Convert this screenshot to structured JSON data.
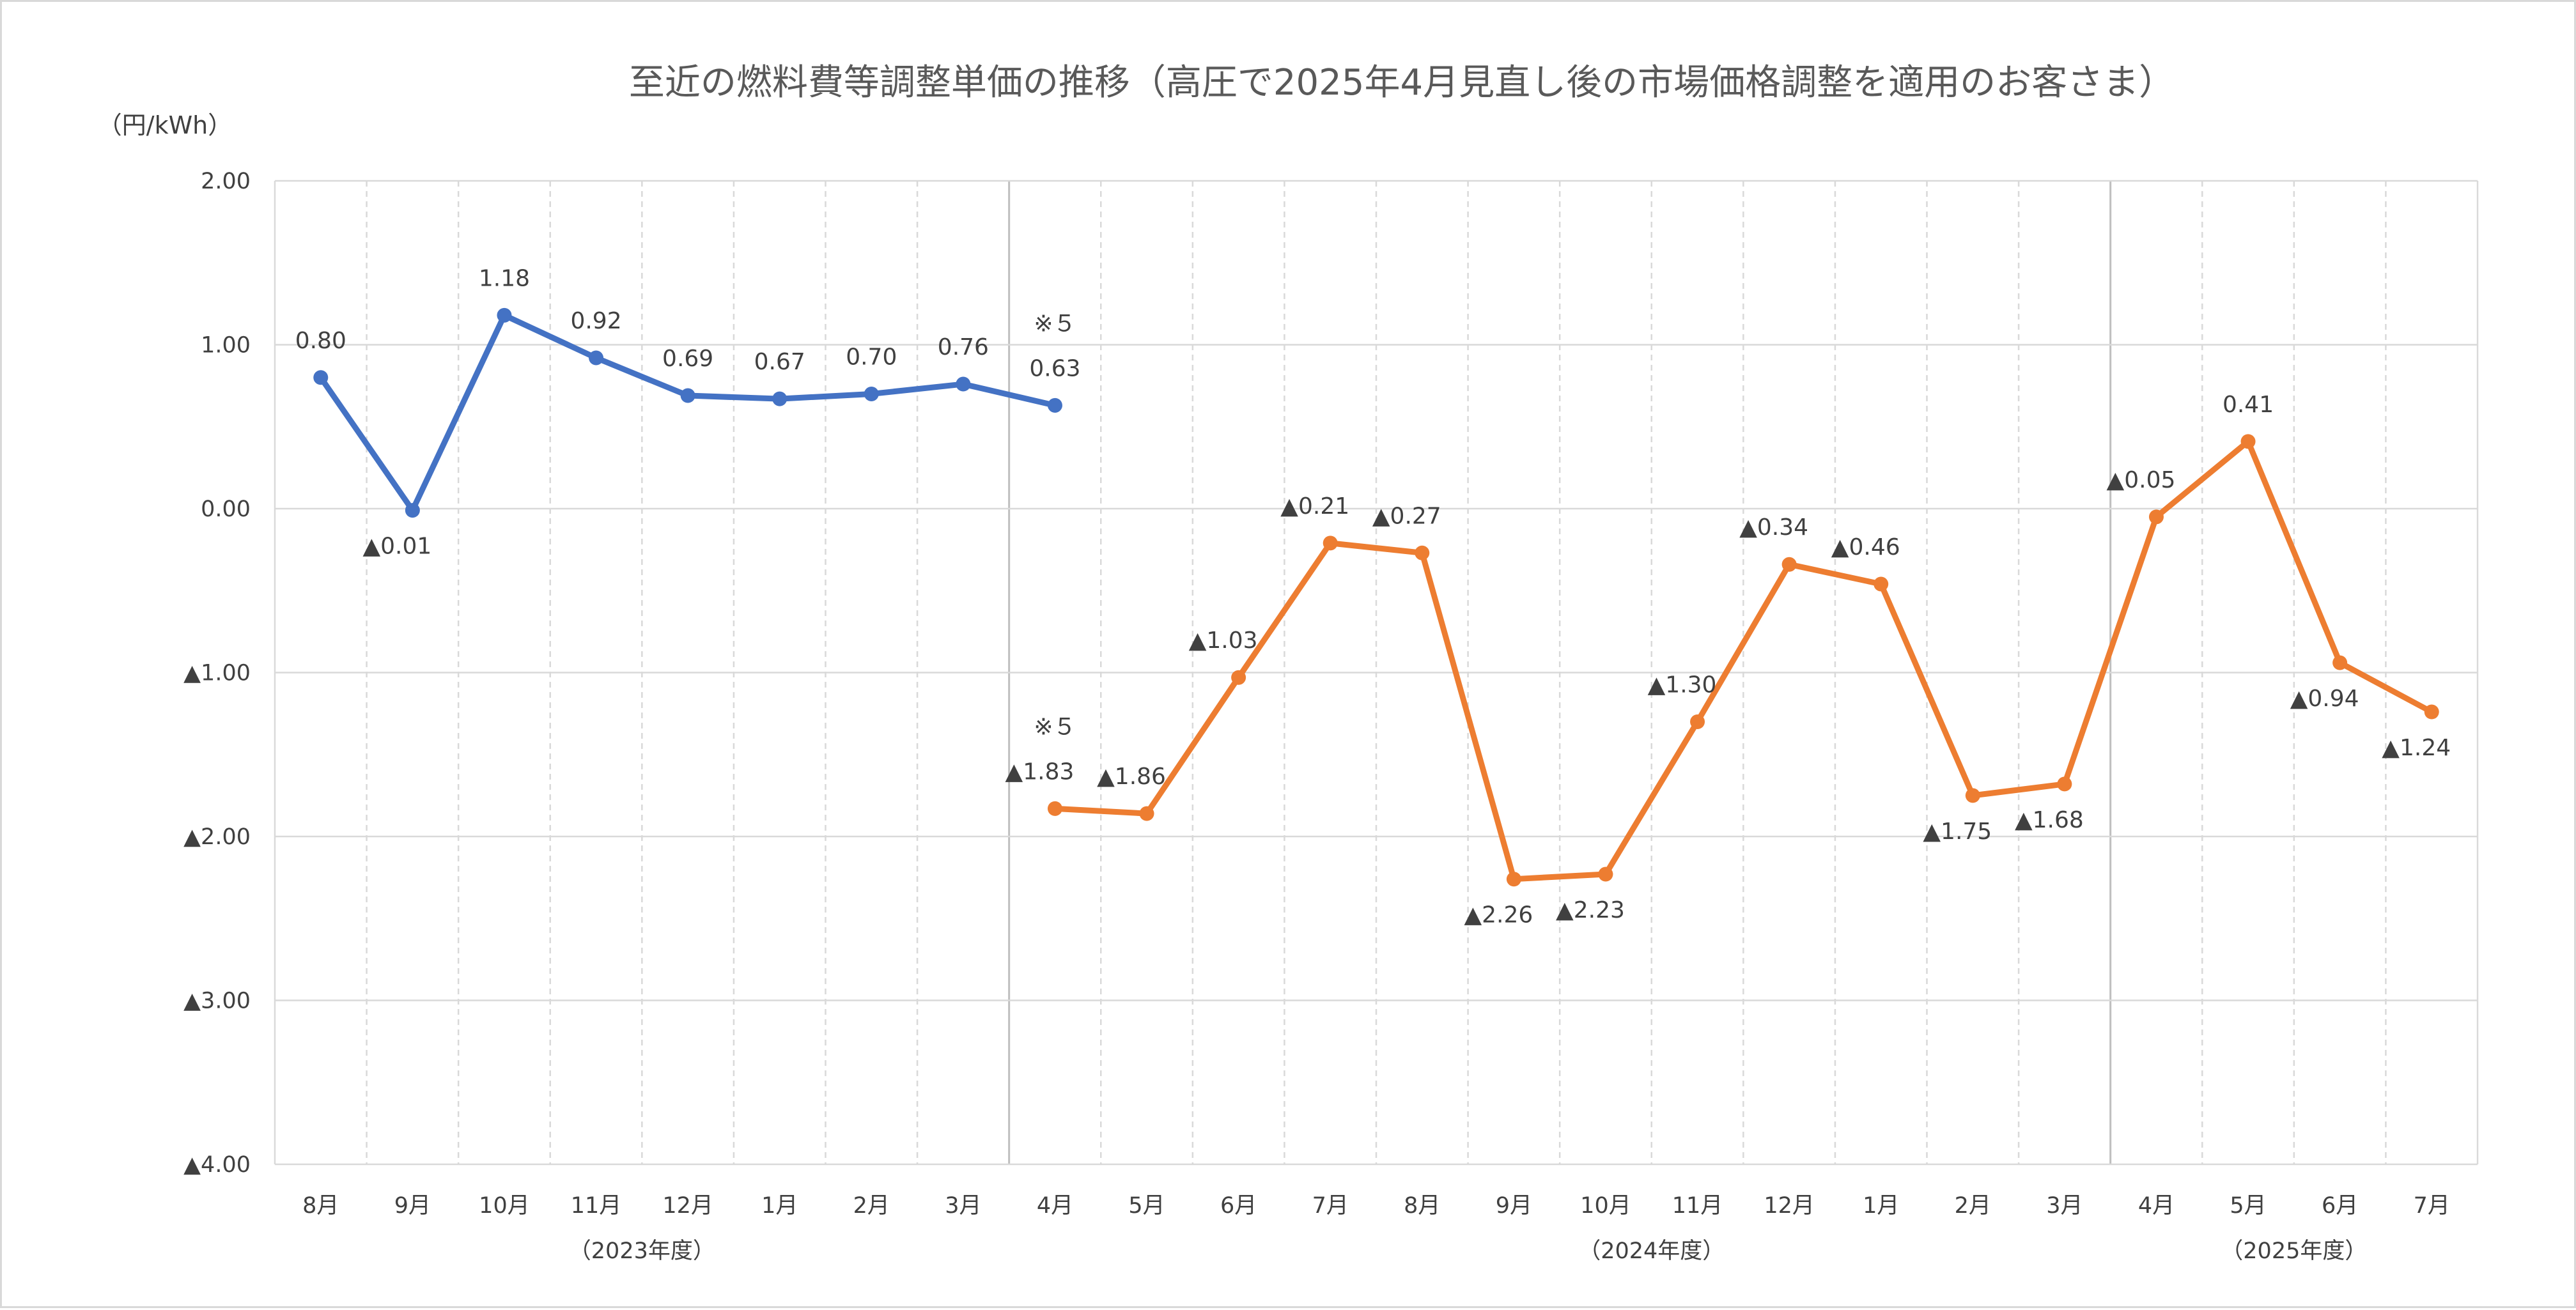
{
  "chart_data": {
    "type": "line",
    "title": "至近の燃料費等調整単価の推移（高圧で2025年4月見直し後の市場価格調整を適用のお客さま）",
    "ylabel": "（円/kWh）",
    "ylim": [
      -4,
      2
    ],
    "y_ticks": [
      {
        "value": 2,
        "label": "2.00"
      },
      {
        "value": 1,
        "label": "1.00"
      },
      {
        "value": 0,
        "label": "0.00"
      },
      {
        "value": -1,
        "label": "▲1.00"
      },
      {
        "value": -2,
        "label": "▲2.00"
      },
      {
        "value": -3,
        "label": "▲3.00"
      },
      {
        "value": -4,
        "label": "▲4.00"
      }
    ],
    "categories": [
      "8月",
      "9月",
      "10月",
      "11月",
      "12月",
      "1月",
      "2月",
      "3月",
      "4月",
      "5月",
      "6月",
      "7月",
      "8月",
      "9月",
      "10月",
      "11月",
      "12月",
      "1月",
      "2月",
      "3月",
      "4月",
      "5月",
      "6月",
      "7月"
    ],
    "fiscal_year_labels": [
      {
        "label": "（2023年度）",
        "center_index": 3.5
      },
      {
        "label": "（2024年度）",
        "center_index": 14.5
      },
      {
        "label": "（2025年度）",
        "center_index": 21.5
      }
    ],
    "fiscal_separators_after_index": [
      7,
      19
    ],
    "grid": true,
    "series": [
      {
        "color": "#4472c4",
        "points": [
          {
            "i": 0,
            "y": 0.8,
            "label": "0.80",
            "pos": "above"
          },
          {
            "i": 1,
            "y": -0.01,
            "label": "▲0.01",
            "pos": "below"
          },
          {
            "i": 2,
            "y": 1.18,
            "label": "1.18",
            "pos": "above"
          },
          {
            "i": 3,
            "y": 0.92,
            "label": "0.92",
            "pos": "above"
          },
          {
            "i": 4,
            "y": 0.69,
            "label": "0.69",
            "pos": "above"
          },
          {
            "i": 5,
            "y": 0.67,
            "label": "0.67",
            "pos": "above"
          },
          {
            "i": 6,
            "y": 0.7,
            "label": "0.70",
            "pos": "above"
          },
          {
            "i": 7,
            "y": 0.76,
            "label": "0.76",
            "pos": "above"
          },
          {
            "i": 8,
            "y": 0.63,
            "label": "0.63",
            "pos": "above",
            "note": "※５"
          }
        ]
      },
      {
        "color": "#ed7d31",
        "points": [
          {
            "i": 8,
            "y": -1.83,
            "label": "▲1.83",
            "pos": "above",
            "note": "※５"
          },
          {
            "i": 9,
            "y": -1.86,
            "label": "▲1.86",
            "pos": "above"
          },
          {
            "i": 10,
            "y": -1.03,
            "label": "▲1.03",
            "pos": "above"
          },
          {
            "i": 11,
            "y": -0.21,
            "label": "▲0.21",
            "pos": "above"
          },
          {
            "i": 12,
            "y": -0.27,
            "label": "▲0.27",
            "pos": "above"
          },
          {
            "i": 13,
            "y": -2.26,
            "label": "▲2.26",
            "pos": "below"
          },
          {
            "i": 14,
            "y": -2.23,
            "label": "▲2.23",
            "pos": "below"
          },
          {
            "i": 15,
            "y": -1.3,
            "label": "▲1.30",
            "pos": "above"
          },
          {
            "i": 16,
            "y": -0.34,
            "label": "▲0.34",
            "pos": "above"
          },
          {
            "i": 17,
            "y": -0.46,
            "label": "▲0.46",
            "pos": "above"
          },
          {
            "i": 18,
            "y": -1.75,
            "label": "▲1.75",
            "pos": "below"
          },
          {
            "i": 19,
            "y": -1.68,
            "label": "▲1.68",
            "pos": "below"
          },
          {
            "i": 20,
            "y": -0.05,
            "label": "▲0.05",
            "pos": "above"
          },
          {
            "i": 21,
            "y": 0.41,
            "label": "0.41",
            "pos": "above"
          },
          {
            "i": 22,
            "y": -0.94,
            "label": "▲0.94",
            "pos": "below"
          },
          {
            "i": 23,
            "y": -1.24,
            "label": "▲1.24",
            "pos": "below"
          }
        ]
      }
    ]
  }
}
